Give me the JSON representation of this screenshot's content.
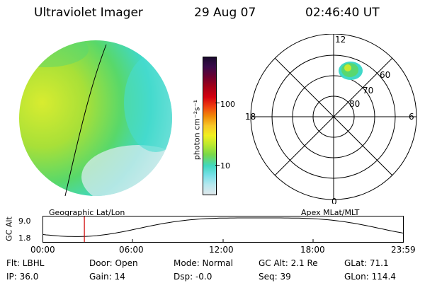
{
  "header": {
    "instrument": "Ultraviolet Imager",
    "date": "29 Aug 07",
    "time": "02:46:40 UT"
  },
  "colorbar": {
    "label": "photon cm⁻²s⁻¹",
    "ticks": [
      "100",
      "10"
    ],
    "scale": "log",
    "colors": [
      "#1a0a2e",
      "#3a0a4a",
      "#6a0030",
      "#a00018",
      "#d40010",
      "#f04010",
      "#f08a08",
      "#f8c828",
      "#f0f020",
      "#b8e830",
      "#78d84a",
      "#40d8c0",
      "#78e0e8",
      "#b8e8ee",
      "#e0e8ec"
    ]
  },
  "polar_plot": {
    "mlt_labels": [
      "12",
      "18",
      "6",
      "0"
    ],
    "lat_labels": [
      "60",
      "70",
      "80"
    ]
  },
  "timeline": {
    "left_label": "Geographic Lat/Lon",
    "right_label": "Apex MLat/MLT",
    "axis_title": "GC Alt",
    "y_ticks": [
      "9.0",
      "1.8"
    ],
    "x_ticks": [
      "00:00",
      "06:00",
      "12:00",
      "18:00",
      "23:59"
    ],
    "current_time_fraction": 0.1158
  },
  "status": {
    "filter": "Flt: LBHL",
    "door": "Door: Open",
    "mode": "Mode: Normal",
    "gc_alt": "GC Alt: 2.1 Re",
    "glat": "GLat:  71.1",
    "ip": "IP: 36.0",
    "gain": "Gain: 14",
    "dsp": "Dsp:   -0.0",
    "seq": "Seq: 39",
    "glon": "GLon: 114.4"
  }
}
